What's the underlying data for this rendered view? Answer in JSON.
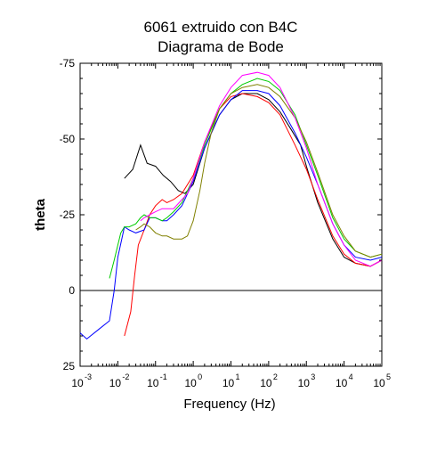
{
  "chart_data": {
    "type": "line",
    "title": [
      "6061 extruido con B4C",
      "Diagrama de Bode"
    ],
    "xlabel": "Frequency (Hz)",
    "ylabel": "theta",
    "x_scale": "log",
    "xlim": [
      0.001,
      100000
    ],
    "ylim": [
      25,
      -75
    ],
    "x_ticks": [
      {
        "base": "10",
        "exp": "-3"
      },
      {
        "base": "10",
        "exp": "-2"
      },
      {
        "base": "10",
        "exp": "-1"
      },
      {
        "base": "10",
        "exp": "0"
      },
      {
        "base": "10",
        "exp": "1"
      },
      {
        "base": "10",
        "exp": "2"
      },
      {
        "base": "10",
        "exp": "3"
      },
      {
        "base": "10",
        "exp": "4"
      },
      {
        "base": "10",
        "exp": "5"
      }
    ],
    "y_ticks": [
      "-75",
      "-50",
      "-25",
      "0",
      "25"
    ],
    "zero_line": 0,
    "legend": "none",
    "grid": false,
    "series": [
      {
        "color": "#000000",
        "x": [
          0.015,
          0.025,
          0.04,
          0.06,
          0.1,
          0.16,
          0.25,
          0.4,
          0.6,
          1,
          2,
          5,
          10,
          20,
          50,
          100,
          200,
          400,
          700,
          1000,
          2000,
          5000,
          10000,
          20000,
          50000,
          100000
        ],
        "y": [
          -37,
          -40,
          -48,
          -42,
          -41,
          -38,
          -36,
          -33,
          -32,
          -35,
          -47,
          -58,
          -63,
          -65,
          -65,
          -63,
          -59,
          -53,
          -48,
          -41,
          -29,
          -17,
          -11,
          -9,
          -8,
          -10
        ]
      },
      {
        "color": "#ff0000",
        "x": [
          0.015,
          0.022,
          0.028,
          0.035,
          0.05,
          0.07,
          0.1,
          0.15,
          0.2,
          0.3,
          0.5,
          1,
          2,
          5,
          10,
          20,
          50,
          100,
          200,
          500,
          1000,
          2000,
          5000,
          10000,
          20000,
          50000,
          100000
        ],
        "y": [
          15,
          7,
          -5,
          -15,
          -20,
          -25,
          -28,
          -30,
          -29,
          -30,
          -32,
          -38,
          -49,
          -60,
          -64,
          -65,
          -64,
          -62,
          -58,
          -48,
          -40,
          -30,
          -18,
          -12,
          -9,
          -8,
          -10
        ]
      },
      {
        "color": "#0000ff",
        "x": [
          0.001,
          0.0015,
          0.003,
          0.006,
          0.008,
          0.01,
          0.015,
          0.02,
          0.03,
          0.05,
          0.07,
          0.1,
          0.15,
          0.2,
          0.3,
          0.5,
          1,
          2,
          5,
          10,
          20,
          50,
          100,
          200,
          500,
          1000,
          2000,
          5000,
          10000,
          20000,
          50000,
          100000
        ],
        "y": [
          14,
          16,
          13,
          10,
          0,
          -11,
          -21,
          -20,
          -19,
          -20,
          -24,
          -24,
          -23,
          -23,
          -25,
          -28,
          -36,
          -47,
          -58,
          -63,
          -66,
          -66,
          -65,
          -61,
          -52,
          -44,
          -35,
          -22,
          -15,
          -11,
          -10,
          -11
        ]
      },
      {
        "color": "#00cc00",
        "x": [
          0.006,
          0.008,
          0.01,
          0.012,
          0.015,
          0.02,
          0.03,
          0.04,
          0.05,
          0.07,
          0.1,
          0.15,
          0.2,
          0.3,
          0.5,
          1,
          2,
          5,
          10,
          20,
          50,
          100,
          200,
          500,
          1000,
          2000,
          5000,
          10000,
          20000,
          50000,
          100000
        ],
        "y": [
          -4,
          -10,
          -15,
          -19,
          -21,
          -21,
          -22,
          -24,
          -25,
          -24,
          -24,
          -23,
          -24,
          -26,
          -29,
          -37,
          -48,
          -60,
          -65,
          -68,
          -70,
          -69,
          -66,
          -58,
          -48,
          -38,
          -24,
          -17,
          -13,
          -11,
          -12
        ]
      },
      {
        "color": "#808000",
        "x": [
          0.03,
          0.04,
          0.05,
          0.07,
          0.1,
          0.15,
          0.2,
          0.3,
          0.5,
          0.7,
          1,
          1.5,
          2,
          3,
          5,
          10,
          20,
          50,
          100,
          200,
          500,
          1000,
          2000,
          5000,
          10000,
          20000,
          50000,
          100000
        ],
        "y": [
          -20,
          -21,
          -22,
          -21,
          -19,
          -18,
          -18,
          -17,
          -17,
          -18,
          -23,
          -33,
          -42,
          -52,
          -60,
          -65,
          -67,
          -68,
          -67,
          -64,
          -57,
          -49,
          -39,
          -25,
          -18,
          -13,
          -11,
          -12
        ]
      },
      {
        "color": "#ff00ff",
        "x": [
          0.04,
          0.05,
          0.07,
          0.1,
          0.15,
          0.2,
          0.3,
          0.5,
          0.7,
          1,
          2,
          5,
          10,
          20,
          50,
          100,
          200,
          500,
          1000,
          2000,
          5000,
          10000,
          20000,
          50000,
          100000
        ],
        "y": [
          -23,
          -24,
          -25,
          -26,
          -27,
          -27,
          -27,
          -30,
          -32,
          -37,
          -49,
          -61,
          -67,
          -71,
          -72,
          -71,
          -67,
          -57,
          -47,
          -35,
          -22,
          -15,
          -10,
          -8,
          -10
        ]
      }
    ]
  }
}
